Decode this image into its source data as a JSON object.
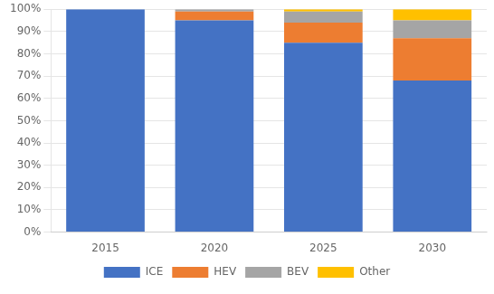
{
  "chart_data": {
    "type": "bar",
    "stacked": true,
    "categories": [
      "2015",
      "2020",
      "2025",
      "2030"
    ],
    "series": [
      {
        "name": "ICE",
        "color": "#4472C4",
        "values": [
          100,
          95,
          85,
          68
        ]
      },
      {
        "name": "HEV",
        "color": "#ED7D31",
        "values": [
          0,
          4,
          9,
          19
        ]
      },
      {
        "name": "BEV",
        "color": "#A5A5A5",
        "values": [
          0,
          1,
          5,
          8
        ]
      },
      {
        "name": "Other",
        "color": "#FFC000",
        "values": [
          0,
          0,
          1,
          5
        ]
      }
    ],
    "ylim": [
      0,
      100
    ],
    "yticks": [
      {
        "value": 0,
        "label": "0%"
      },
      {
        "value": 10,
        "label": "10%"
      },
      {
        "value": 20,
        "label": "20%"
      },
      {
        "value": 30,
        "label": "30%"
      },
      {
        "value": 40,
        "label": "40%"
      },
      {
        "value": 50,
        "label": "50%"
      },
      {
        "value": 60,
        "label": "60%"
      },
      {
        "value": 70,
        "label": "70%"
      },
      {
        "value": 80,
        "label": "80%"
      },
      {
        "value": 90,
        "label": "90%"
      },
      {
        "value": 100,
        "label": "100%"
      }
    ],
    "grid": true,
    "legend": "bottom"
  }
}
